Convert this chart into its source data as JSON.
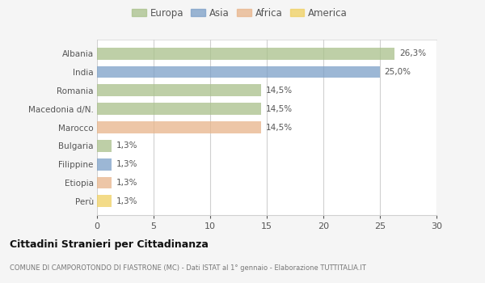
{
  "categories": [
    "Albania",
    "India",
    "Romania",
    "Macedonia d/N.",
    "Marocco",
    "Bulgaria",
    "Filippine",
    "Etiopia",
    "Perù"
  ],
  "values": [
    26.3,
    25.0,
    14.5,
    14.5,
    14.5,
    1.3,
    1.3,
    1.3,
    1.3
  ],
  "labels": [
    "26,3%",
    "25,0%",
    "14,5%",
    "14,5%",
    "14,5%",
    "1,3%",
    "1,3%",
    "1,3%",
    "1,3%"
  ],
  "colors": [
    "#a8c08a",
    "#7b9fc7",
    "#a8c08a",
    "#a8c08a",
    "#e8b48a",
    "#a8c08a",
    "#7b9fc7",
    "#e8b48a",
    "#f0d060"
  ],
  "legend_labels": [
    "Europa",
    "Asia",
    "Africa",
    "America"
  ],
  "legend_colors": [
    "#a8c08a",
    "#7b9fc7",
    "#e8b48a",
    "#f0d060"
  ],
  "title": "Cittadini Stranieri per Cittadinanza",
  "subtitle": "COMUNE DI CAMPOROTONDO DI FIASTRONE (MC) - Dati ISTAT al 1° gennaio - Elaborazione TUTTITALIA.IT",
  "xlim": [
    0,
    30
  ],
  "xticks": [
    0,
    5,
    10,
    15,
    20,
    25,
    30
  ],
  "background_color": "#f5f5f5",
  "bar_background": "#ffffff",
  "grid_color": "#d0d0d0",
  "text_color": "#555555",
  "title_color": "#111111",
  "subtitle_color": "#777777",
  "bar_alpha": 0.75
}
